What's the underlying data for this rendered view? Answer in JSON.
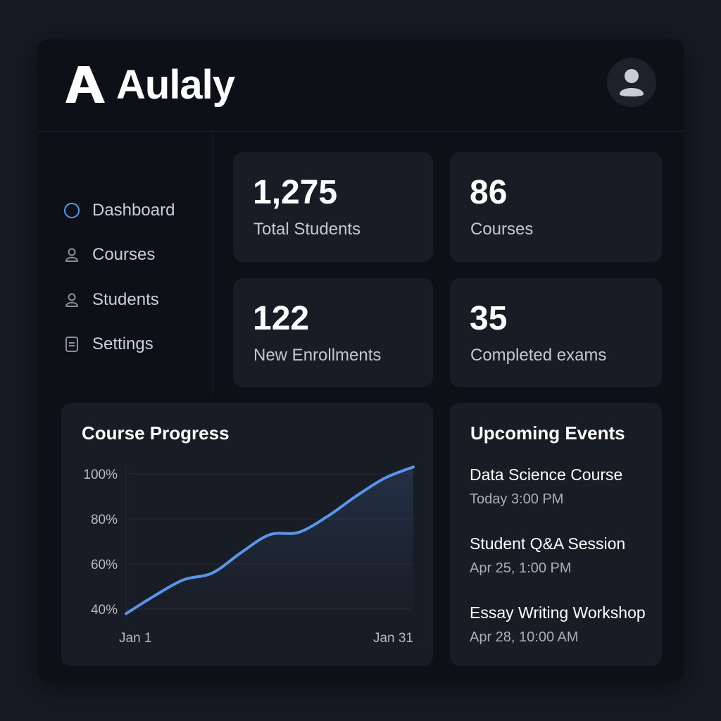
{
  "app": {
    "title": "Aulaly"
  },
  "sidebar": {
    "items": [
      {
        "label": "Dashboard",
        "icon": "circle-icon",
        "active": true
      },
      {
        "label": "Courses",
        "icon": "user-icon",
        "active": false
      },
      {
        "label": "Students",
        "icon": "user-icon",
        "active": false
      },
      {
        "label": "Settings",
        "icon": "document-icon",
        "active": false
      }
    ]
  },
  "stats": [
    {
      "value": "1,275",
      "label": "Total Students"
    },
    {
      "value": "86",
      "label": "Courses"
    },
    {
      "value": "122",
      "label": "New Enrollments"
    },
    {
      "value": "35",
      "label": "Completed exams"
    }
  ],
  "progress": {
    "title": "Course Progress"
  },
  "chart_data": {
    "type": "area",
    "title": "Course Progress",
    "xlabel": "",
    "ylabel": "",
    "x_tick_labels": [
      "Jan 1",
      "Jan 31"
    ],
    "y_tick_labels": [
      "100%",
      "80%",
      "60%",
      "40%"
    ],
    "ylim": [
      36,
      104
    ],
    "grid": true,
    "line_color": "#5b95ea",
    "series": [
      {
        "x": [
          1,
          4,
          7,
          10,
          13,
          16,
          19,
          22,
          25,
          28,
          31
        ],
        "values": [
          38,
          46,
          53,
          56,
          65,
          73,
          74,
          81,
          90,
          98,
          103
        ]
      }
    ]
  },
  "events": {
    "title": "Upcoming Events",
    "items": [
      {
        "title": "Data Science Course",
        "time": "Today  3:00 PM"
      },
      {
        "title": "Student Q&A Session",
        "time": "Apr 25,  1:00 PM"
      },
      {
        "title": "Essay Writing Workshop",
        "time": "Apr 28, 10:00 AM"
      }
    ]
  },
  "colors": {
    "accent": "#5b95ea",
    "background": "#0d1017",
    "card": "#181c25"
  }
}
